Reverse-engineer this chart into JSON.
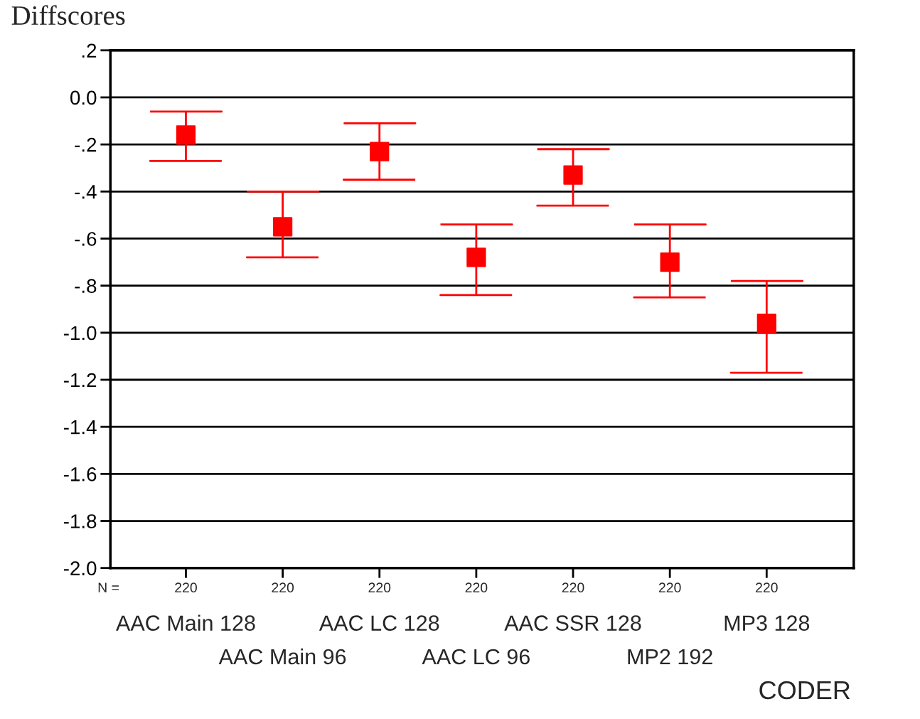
{
  "chart_data": {
    "type": "scatter",
    "ylabel": "Diffscores",
    "xlabel": "CODER",
    "categories": [
      "AAC Main 128",
      "AAC Main 96",
      "AAC LC 128",
      "AAC LC 96",
      "AAC SSR 128",
      "MP2 192",
      "MP3 128"
    ],
    "series": [
      {
        "color": "#ff0000",
        "values": [
          -0.16,
          -0.55,
          -0.23,
          -0.68,
          -0.33,
          -0.7,
          -0.96
        ],
        "errors": [
          [
            -0.27,
            -0.06
          ],
          [
            -0.68,
            -0.4
          ],
          [
            -0.35,
            -0.11
          ],
          [
            -0.84,
            -0.54
          ],
          [
            -0.46,
            -0.22
          ],
          [
            -0.85,
            -0.54
          ],
          [
            -1.17,
            -0.78
          ]
        ]
      }
    ],
    "annotations": [
      "N =",
      "220",
      "220",
      "220",
      "220",
      "220",
      "220",
      "220"
    ],
    "ylim": [
      -2.0,
      0.2
    ],
    "yticks": [
      {
        "value": 0.2,
        "label": ".2"
      },
      {
        "value": 0.0,
        "label": "0.0"
      },
      {
        "value": -0.2,
        "label": "-.2"
      },
      {
        "value": -0.4,
        "label": "-.4"
      },
      {
        "value": -0.6,
        "label": "-.6"
      },
      {
        "value": -0.8,
        "label": "-.8"
      },
      {
        "value": -1.0,
        "label": "-1.0"
      },
      {
        "value": -1.2,
        "label": "-1.2"
      },
      {
        "value": -1.4,
        "label": "-1.4"
      },
      {
        "value": -1.6,
        "label": "-1.6"
      },
      {
        "value": -1.8,
        "label": "-1.8"
      },
      {
        "value": -2.0,
        "label": "-2.0"
      }
    ],
    "grid": "y",
    "marker": "square",
    "legend": false
  }
}
